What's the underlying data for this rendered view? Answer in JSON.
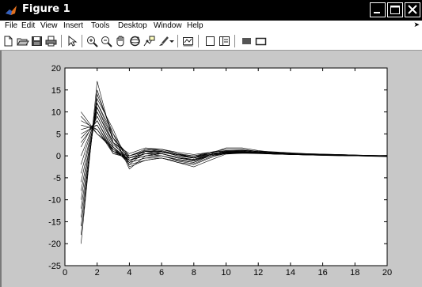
{
  "window": {
    "title": "Figure 1"
  },
  "menu": {
    "items": [
      "File",
      "Edit",
      "View",
      "Insert",
      "Tools",
      "Desktop",
      "Window",
      "Help"
    ]
  },
  "toolbar": {
    "buttons": [
      "new-figure-icon",
      "open-file-icon",
      "save-icon",
      "print-icon",
      "edit-plot-arrow-icon",
      "zoom-in-icon",
      "zoom-out-icon",
      "pan-hand-icon",
      "rotate-3d-icon",
      "data-cursor-icon",
      "brush-icon",
      "brush-dropdown-icon",
      "link-plot-icon",
      "hide-plot-tools-icon",
      "show-plot-tools-icon",
      "insert-colorbar-icon",
      "insert-legend-icon"
    ]
  },
  "chart_data": {
    "type": "line",
    "title": "",
    "xlabel": "",
    "ylabel": "",
    "xlim": [
      0,
      20
    ],
    "ylim": [
      -25,
      20
    ],
    "xticks": [
      "0",
      "2",
      "4",
      "6",
      "8",
      "10",
      "12",
      "14",
      "16",
      "18",
      "20"
    ],
    "yticks": [
      "20",
      "15",
      "10",
      "5",
      "0",
      "-5",
      "-10",
      "-15",
      "-20",
      "-25"
    ],
    "x": [
      1,
      2,
      3,
      4,
      5,
      6,
      7,
      8,
      9,
      10,
      11,
      12,
      13,
      14,
      15,
      16,
      17,
      18,
      19,
      20
    ],
    "grid": false,
    "line_color": "#000000",
    "series": [
      {
        "values": [
          -20,
          17,
          3,
          -1.5,
          1.5,
          1.5,
          0.5,
          -0.5,
          0.5,
          1.8,
          1.8,
          1.2,
          0.8,
          0.5,
          0.4,
          0.3,
          0.2,
          0.1,
          0.0,
          0.0
        ]
      },
      {
        "values": [
          -18,
          15,
          4,
          -2,
          1,
          1,
          0.3,
          -0.3,
          0.8,
          1.5,
          1.5,
          1.0,
          0.7,
          0.5,
          0.3,
          0.3,
          0.2,
          0.1,
          0.1,
          0.0
        ]
      },
      {
        "values": [
          -16,
          14,
          5,
          -3,
          0,
          0.5,
          -0.5,
          -1,
          0.2,
          1.2,
          1.3,
          1.0,
          0.8,
          0.6,
          0.5,
          0.4,
          0.3,
          0.2,
          0.1,
          0.0
        ]
      },
      {
        "values": [
          -14,
          13,
          6,
          -2.5,
          -1,
          -0.5,
          -1.5,
          -2,
          -0.5,
          1.0,
          1.2,
          1.1,
          0.9,
          0.7,
          0.5,
          0.4,
          0.3,
          0.2,
          0.0,
          -0.1
        ]
      },
      {
        "values": [
          -12,
          12,
          5,
          -1,
          0.5,
          0,
          -1,
          -1.5,
          0,
          0.8,
          1.0,
          0.8,
          0.6,
          0.5,
          0.4,
          0.3,
          0.2,
          0.1,
          0.0,
          0.0
        ]
      },
      {
        "values": [
          -10,
          12,
          4,
          -0.5,
          1,
          0.5,
          -0.5,
          -0.8,
          0.3,
          0.7,
          0.9,
          0.7,
          0.5,
          0.4,
          0.3,
          0.2,
          0.1,
          0.0,
          0.0,
          0.0
        ]
      },
      {
        "values": [
          -8,
          11,
          4,
          0,
          1.5,
          1,
          0,
          -0.5,
          0.5,
          1.0,
          1.1,
          0.8,
          0.6,
          0.5,
          0.4,
          0.3,
          0.3,
          0.2,
          0.1,
          0.0
        ]
      },
      {
        "values": [
          -6,
          11,
          3,
          0.5,
          1.8,
          1.5,
          0.5,
          0,
          0.8,
          1.2,
          1.2,
          0.9,
          0.6,
          0.4,
          0.3,
          0.3,
          0.2,
          0.1,
          0.1,
          0.1
        ]
      },
      {
        "values": [
          -4,
          10,
          3,
          0,
          1,
          1,
          0,
          -0.3,
          0.5,
          0.9,
          0.9,
          0.7,
          0.5,
          0.4,
          0.4,
          0.3,
          0.2,
          0.1,
          0.0,
          0.0
        ]
      },
      {
        "values": [
          -2,
          10,
          2.5,
          -0.5,
          0.5,
          0.5,
          -0.5,
          -1,
          0.2,
          0.8,
          0.8,
          0.6,
          0.5,
          0.4,
          0.3,
          0.2,
          0.1,
          0.0,
          0.0,
          -0.1
        ]
      },
      {
        "values": [
          0,
          9,
          2,
          -1,
          0,
          0,
          -1,
          -1.5,
          0,
          0.6,
          0.7,
          0.6,
          0.5,
          0.4,
          0.3,
          0.2,
          0.1,
          0.1,
          0.0,
          0.0
        ]
      },
      {
        "values": [
          2,
          9,
          2,
          -1.5,
          -0.5,
          -0.5,
          -1.5,
          -2.5,
          -1,
          0.4,
          0.6,
          0.6,
          0.5,
          0.4,
          0.3,
          0.2,
          0.1,
          0.0,
          -0.1,
          -0.2
        ]
      },
      {
        "values": [
          3,
          8,
          1.5,
          -1,
          0,
          0.5,
          -0.5,
          -1,
          0,
          0.5,
          0.6,
          0.5,
          0.4,
          0.3,
          0.2,
          0.1,
          0.0,
          0.0,
          0.0,
          0.0
        ]
      },
      {
        "values": [
          4,
          8,
          1,
          -0.5,
          0.5,
          1,
          0,
          -0.5,
          0.3,
          0.7,
          0.8,
          0.6,
          0.4,
          0.3,
          0.2,
          0.1,
          0.1,
          0.0,
          0.0,
          0.0
        ]
      },
      {
        "values": [
          5,
          7,
          1,
          0,
          1,
          1.2,
          0.3,
          0,
          0.5,
          0.9,
          0.9,
          0.7,
          0.5,
          0.3,
          0.2,
          0.2,
          0.1,
          0.1,
          0.0,
          0.0
        ]
      },
      {
        "values": [
          6,
          7,
          0.5,
          0,
          1.2,
          1.5,
          0.8,
          0.3,
          0.8,
          1.1,
          1.0,
          0.8,
          0.5,
          0.4,
          0.3,
          0.2,
          0.1,
          0.0,
          0.0,
          0.1
        ]
      },
      {
        "values": [
          7,
          6,
          0.5,
          -0.5,
          0.5,
          0.8,
          0.2,
          -0.3,
          0.5,
          0.9,
          0.9,
          0.7,
          0.5,
          0.4,
          0.3,
          0.2,
          0.2,
          0.1,
          0.0,
          0.0
        ]
      },
      {
        "values": [
          8,
          6,
          1,
          -1,
          0,
          0.5,
          -0.3,
          -0.8,
          0.2,
          0.7,
          0.8,
          0.6,
          0.5,
          0.3,
          0.3,
          0.2,
          0.1,
          0.0,
          0.0,
          0.0
        ]
      },
      {
        "values": [
          9,
          5,
          1.5,
          -1.5,
          -0.5,
          0,
          -0.8,
          -1.2,
          0,
          0.6,
          0.7,
          0.6,
          0.4,
          0.3,
          0.2,
          0.2,
          0.1,
          0.0,
          -0.1,
          -0.1
        ]
      },
      {
        "values": [
          10,
          5,
          2,
          -2,
          -1,
          -0.5,
          -1.2,
          -1.8,
          -0.3,
          0.5,
          0.7,
          0.6,
          0.5,
          0.4,
          0.3,
          0.2,
          0.1,
          0.0,
          0.0,
          0.0
        ]
      }
    ]
  }
}
